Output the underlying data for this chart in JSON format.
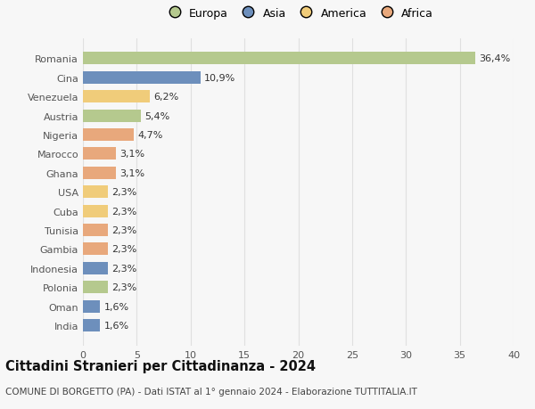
{
  "countries": [
    "India",
    "Oman",
    "Polonia",
    "Indonesia",
    "Gambia",
    "Tunisia",
    "Cuba",
    "USA",
    "Ghana",
    "Marocco",
    "Nigeria",
    "Austria",
    "Venezuela",
    "Cina",
    "Romania"
  ],
  "values": [
    1.6,
    1.6,
    2.3,
    2.3,
    2.3,
    2.3,
    2.3,
    2.3,
    3.1,
    3.1,
    4.7,
    5.4,
    6.2,
    10.9,
    36.4
  ],
  "labels": [
    "1,6%",
    "1,6%",
    "2,3%",
    "2,3%",
    "2,3%",
    "2,3%",
    "2,3%",
    "2,3%",
    "3,1%",
    "3,1%",
    "4,7%",
    "5,4%",
    "6,2%",
    "10,9%",
    "36,4%"
  ],
  "continents": [
    "Asia",
    "Asia",
    "Europa",
    "Asia",
    "Africa",
    "Africa",
    "America",
    "America",
    "Africa",
    "Africa",
    "Africa",
    "Europa",
    "America",
    "Asia",
    "Europa"
  ],
  "continent_colors": {
    "Europa": "#b5c98e",
    "Asia": "#6d8fbc",
    "America": "#f0cc7a",
    "Africa": "#e8a87c"
  },
  "legend_order": [
    "Europa",
    "Asia",
    "America",
    "Africa"
  ],
  "title": "Cittadini Stranieri per Cittadinanza - 2024",
  "subtitle": "COMUNE DI BORGETTO (PA) - Dati ISTAT al 1° gennaio 2024 - Elaborazione TUTTITALIA.IT",
  "xlim": [
    0,
    40
  ],
  "xticks": [
    0,
    5,
    10,
    15,
    20,
    25,
    30,
    35,
    40
  ],
  "background_color": "#f7f7f7",
  "grid_color": "#e0e0e0",
  "bar_height": 0.65,
  "label_fontsize": 8,
  "tick_fontsize": 8,
  "title_fontsize": 10.5,
  "subtitle_fontsize": 7.5,
  "legend_fontsize": 9
}
